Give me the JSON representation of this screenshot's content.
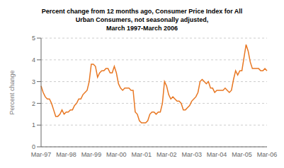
{
  "chart_data": {
    "type": "line",
    "title": "Percent change from 12 months ago, Consumer Price Index for All\nUrban Consumers, not seasonally adjusted,\nMarch 1997-March 2006",
    "ylabel": "Percent change",
    "color": "#E87722",
    "ylim": [
      0,
      5
    ],
    "yticks": [
      0,
      1,
      2,
      3,
      4,
      5
    ],
    "grid": true,
    "categories": [
      "Mar-97",
      null,
      null,
      null,
      null,
      null,
      null,
      null,
      null,
      null,
      null,
      null,
      "Mar-98",
      null,
      null,
      null,
      null,
      null,
      null,
      null,
      null,
      null,
      null,
      null,
      "Mar-99",
      null,
      null,
      null,
      null,
      null,
      null,
      null,
      null,
      null,
      null,
      null,
      "Mar-00",
      null,
      null,
      null,
      null,
      null,
      null,
      null,
      null,
      null,
      null,
      null,
      "Mar-01",
      null,
      null,
      null,
      null,
      null,
      null,
      null,
      null,
      null,
      null,
      null,
      "Mar-02",
      null,
      null,
      null,
      null,
      null,
      null,
      null,
      null,
      null,
      null,
      null,
      "Mar-03",
      null,
      null,
      null,
      null,
      null,
      null,
      null,
      null,
      null,
      null,
      null,
      "Mar-04",
      null,
      null,
      null,
      null,
      null,
      null,
      null,
      null,
      null,
      null,
      null,
      "Mar-05",
      null,
      null,
      null,
      null,
      null,
      null,
      null,
      null,
      null,
      null,
      null,
      "Mar-06"
    ],
    "values": [
      2.8,
      2.5,
      2.3,
      2.2,
      2.2,
      2.0,
      1.7,
      1.4,
      1.4,
      1.5,
      1.7,
      1.5,
      1.6,
      1.6,
      1.7,
      1.7,
      1.9,
      2.0,
      2.2,
      2.2,
      2.4,
      2.5,
      2.6,
      3.0,
      3.8,
      3.8,
      3.7,
      3.2,
      3.4,
      3.5,
      3.5,
      3.6,
      3.6,
      3.4,
      3.4,
      3.7,
      3.4,
      2.9,
      2.7,
      2.6,
      2.7,
      2.7,
      2.7,
      2.6,
      2.6,
      1.6,
      1.5,
      1.2,
      1.1,
      1.1,
      1.1,
      1.2,
      1.5,
      1.6,
      1.6,
      1.5,
      1.6,
      1.6,
      2.0,
      3.0,
      2.8,
      2.4,
      2.2,
      2.3,
      2.2,
      2.1,
      2.1,
      2.0,
      1.7,
      1.7,
      1.8,
      1.9,
      2.1,
      2.2,
      2.3,
      2.5,
      3.0,
      3.1,
      3.0,
      2.9,
      3.0,
      2.7,
      2.7,
      2.5,
      2.6,
      2.6,
      2.6,
      2.6,
      2.7,
      2.6,
      2.5,
      2.6,
      3.1,
      3.5,
      3.3,
      3.5,
      3.5,
      4.1,
      4.7,
      4.4,
      3.9,
      3.6,
      3.6,
      3.6,
      3.6,
      3.5,
      3.5,
      3.6,
      3.5
    ]
  }
}
